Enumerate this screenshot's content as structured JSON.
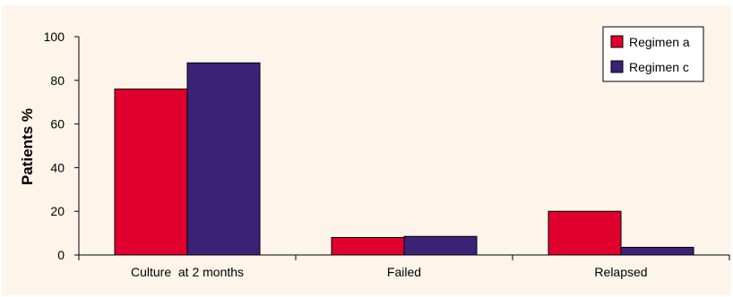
{
  "chart_data": {
    "type": "bar",
    "title": "",
    "xlabel": "",
    "ylabel": "Patients %",
    "ylim": [
      0,
      100
    ],
    "yticks": [
      0,
      20,
      40,
      60,
      80,
      100
    ],
    "categories": [
      "Culture  at 2 months",
      "Failed",
      "Relapsed"
    ],
    "series": [
      {
        "name": "Regimen a",
        "color": "#e0002d",
        "values": [
          76,
          8,
          20
        ]
      },
      {
        "name": "Regimen c",
        "color": "#3a2277",
        "values": [
          88,
          8.5,
          3.5
        ]
      }
    ],
    "grid": false,
    "legend_position": "top-right"
  }
}
